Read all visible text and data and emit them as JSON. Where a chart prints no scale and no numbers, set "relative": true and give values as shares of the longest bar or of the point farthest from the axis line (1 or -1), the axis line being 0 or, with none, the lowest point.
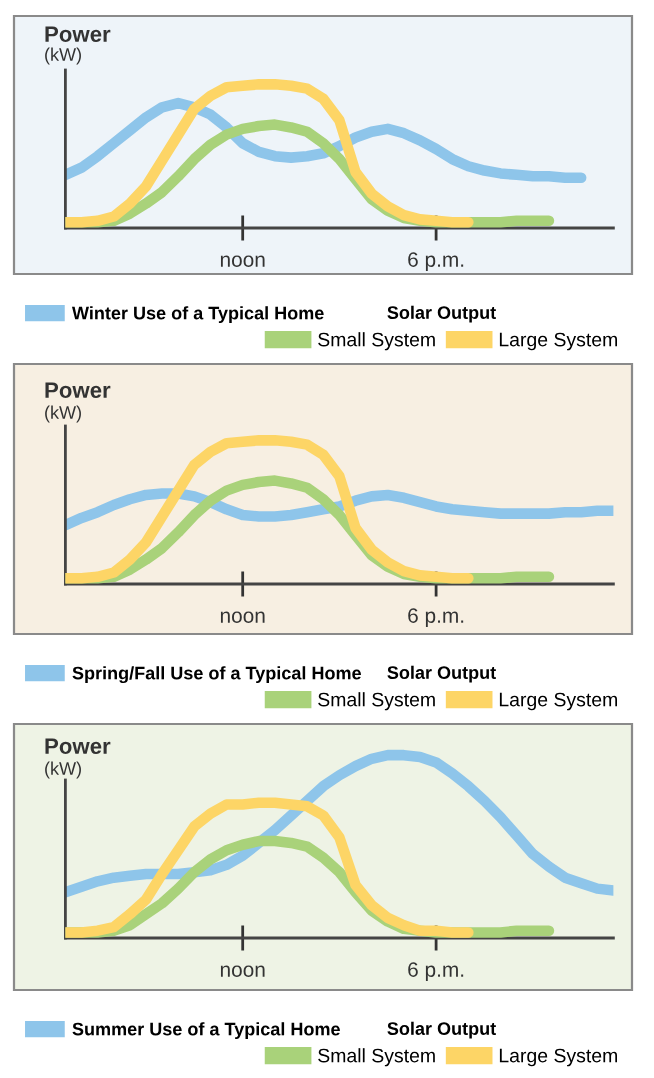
{
  "chart_data": [
    {
      "type": "line",
      "title": "Power",
      "ylabel": "(kW)",
      "relative": true,
      "legend": "bottom",
      "legend_title": "Solar Output",
      "line_style": "solid",
      "marker": "none",
      "grid": false,
      "categories": [
        null,
        null,
        null,
        null,
        null,
        null,
        null,
        null,
        null,
        null,
        null,
        "noon",
        null,
        null,
        null,
        null,
        null,
        null,
        null,
        null,
        null,
        null,
        null,
        "6 p.m.",
        null,
        null,
        null,
        null,
        null,
        null,
        null,
        null,
        null,
        null,
        null
      ],
      "series": [
        {
          "name": "Winter Use of a Typical Home",
          "color": "#8ec5ea",
          "values": [
            0.37,
            0.42,
            0.5,
            0.59,
            0.68,
            0.77,
            0.84,
            0.87,
            0.84,
            0.79,
            0.7,
            0.59,
            0.53,
            0.5,
            0.49,
            0.5,
            0.52,
            0.57,
            0.63,
            0.67,
            0.69,
            0.66,
            0.61,
            0.55,
            0.48,
            0.43,
            0.4,
            0.38,
            0.37,
            0.36,
            0.36,
            0.35,
            0.35,
            null,
            null
          ]
        },
        {
          "name": "Large System",
          "color": "#fdd566",
          "values": [
            0.04,
            0.04,
            0.05,
            0.08,
            0.17,
            0.29,
            0.47,
            0.65,
            0.83,
            0.92,
            0.98,
            0.99,
            1,
            1,
            0.99,
            0.97,
            0.9,
            0.75,
            0.39,
            0.24,
            0.15,
            0.09,
            0.06,
            0.05,
            0.04,
            0.04,
            null,
            null,
            null,
            null,
            null,
            null,
            null,
            null,
            null
          ]
        },
        {
          "name": "Small System",
          "color": "#a9d27a",
          "values": [
            0.04,
            0.04,
            0.04,
            0.05,
            0.1,
            0.17,
            0.25,
            0.36,
            0.48,
            0.58,
            0.65,
            0.69,
            0.71,
            0.72,
            0.7,
            0.67,
            0.59,
            0.48,
            0.34,
            0.2,
            0.12,
            0.07,
            0.05,
            0.04,
            0.04,
            0.04,
            0.04,
            0.04,
            0.05,
            0.05,
            0.05,
            null,
            null,
            null,
            null
          ]
        }
      ]
    },
    {
      "type": "line",
      "title": "Power",
      "ylabel": "(kW)",
      "relative": true,
      "legend": "bottom",
      "legend_title": "Solar Output",
      "line_style": "solid",
      "marker": "none",
      "grid": false,
      "categories": [
        null,
        null,
        null,
        null,
        null,
        null,
        null,
        null,
        null,
        null,
        null,
        "noon",
        null,
        null,
        null,
        null,
        null,
        null,
        null,
        null,
        null,
        null,
        null,
        "6 p.m.",
        null,
        null,
        null,
        null,
        null,
        null,
        null,
        null,
        null,
        null,
        null
      ],
      "series": [
        {
          "name": "Spring/Fall Use of a Typical Home",
          "color": "#8ec5ea",
          "values": [
            0.41,
            0.46,
            0.5,
            0.55,
            0.59,
            0.62,
            0.63,
            0.63,
            0.61,
            0.57,
            0.52,
            0.48,
            0.47,
            0.47,
            0.48,
            0.5,
            0.52,
            0.54,
            0.58,
            0.61,
            0.62,
            0.6,
            0.57,
            0.54,
            0.52,
            0.51,
            0.5,
            0.49,
            0.49,
            0.49,
            0.49,
            0.5,
            0.5,
            0.51,
            0.51
          ]
        },
        {
          "name": "Large System",
          "color": "#fdd566",
          "values": [
            0.04,
            0.04,
            0.05,
            0.08,
            0.17,
            0.29,
            0.47,
            0.65,
            0.83,
            0.92,
            0.98,
            0.99,
            1,
            1,
            0.99,
            0.97,
            0.9,
            0.75,
            0.39,
            0.24,
            0.15,
            0.09,
            0.06,
            0.05,
            0.04,
            0.04,
            null,
            null,
            null,
            null,
            null,
            null,
            null,
            null,
            null
          ]
        },
        {
          "name": "Small System",
          "color": "#a9d27a",
          "values": [
            0.04,
            0.04,
            0.04,
            0.05,
            0.1,
            0.17,
            0.25,
            0.36,
            0.48,
            0.58,
            0.65,
            0.69,
            0.71,
            0.72,
            0.7,
            0.67,
            0.59,
            0.48,
            0.34,
            0.2,
            0.12,
            0.07,
            0.05,
            0.04,
            0.04,
            0.04,
            0.04,
            0.04,
            0.05,
            0.05,
            0.05,
            null,
            null,
            null,
            null
          ]
        }
      ]
    },
    {
      "type": "line",
      "title": "Power",
      "ylabel": "(kW)",
      "relative": true,
      "legend": "bottom",
      "legend_title": "Solar Output",
      "line_style": "solid",
      "marker": "none",
      "grid": false,
      "categories": [
        null,
        null,
        null,
        null,
        null,
        null,
        null,
        null,
        null,
        null,
        null,
        "noon",
        null,
        null,
        null,
        null,
        null,
        null,
        null,
        null,
        null,
        null,
        null,
        "6 p.m.",
        null,
        null,
        null,
        null,
        null,
        null,
        null,
        null,
        null,
        null,
        null
      ],
      "series": [
        {
          "name": "Summer Use of a Typical Home",
          "color": "#8ec5ea",
          "values": [
            0.25,
            0.28,
            0.31,
            0.33,
            0.34,
            0.35,
            0.35,
            0.35,
            0.36,
            0.37,
            0.4,
            0.45,
            0.52,
            0.59,
            0.67,
            0.75,
            0.83,
            0.89,
            0.94,
            0.98,
            1,
            1,
            0.99,
            0.96,
            0.9,
            0.83,
            0.75,
            0.66,
            0.56,
            0.46,
            0.39,
            0.33,
            0.3,
            0.27,
            0.26
          ]
        },
        {
          "name": "Large System",
          "color": "#fdd566",
          "values": [
            0.03,
            0.03,
            0.04,
            0.06,
            0.13,
            0.21,
            0.35,
            0.48,
            0.61,
            0.68,
            0.73,
            0.73,
            0.74,
            0.74,
            0.73,
            0.72,
            0.67,
            0.55,
            0.29,
            0.18,
            0.11,
            0.07,
            0.04,
            0.04,
            0.03,
            0.03,
            null,
            null,
            null,
            null,
            null,
            null,
            null,
            null,
            null
          ]
        },
        {
          "name": "Small System",
          "color": "#a9d27a",
          "values": [
            0.03,
            0.03,
            0.03,
            0.04,
            0.07,
            0.13,
            0.19,
            0.27,
            0.36,
            0.43,
            0.48,
            0.51,
            0.53,
            0.53,
            0.52,
            0.5,
            0.44,
            0.36,
            0.25,
            0.15,
            0.09,
            0.05,
            0.04,
            0.03,
            0.03,
            0.03,
            0.03,
            0.03,
            0.04,
            0.04,
            0.04,
            null,
            null,
            null,
            null
          ]
        }
      ]
    }
  ]
}
